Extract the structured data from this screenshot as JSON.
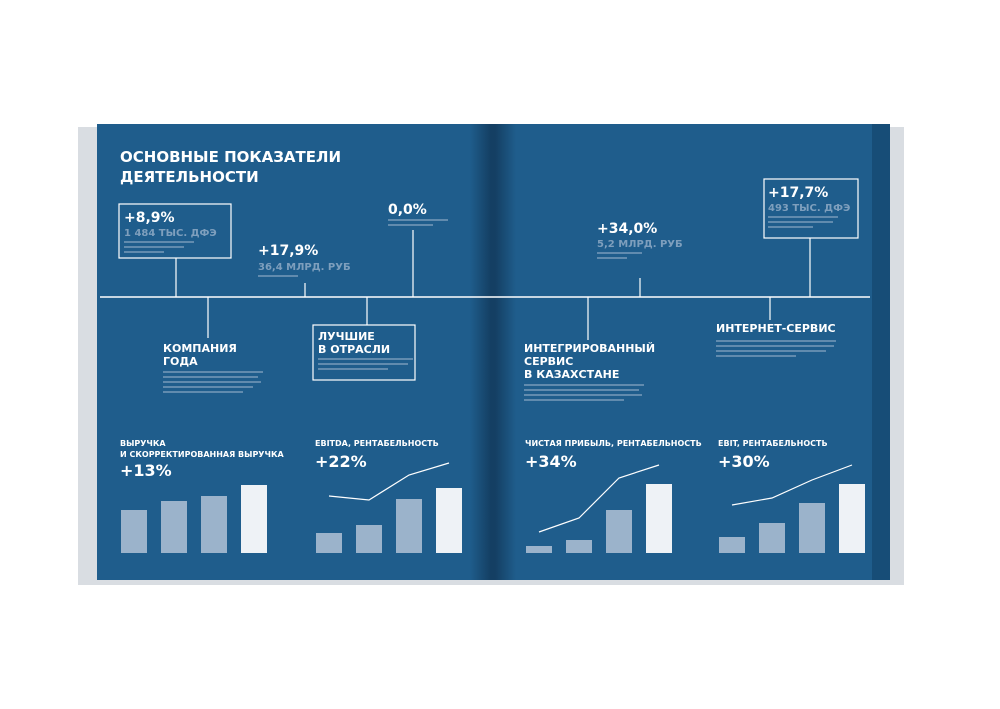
{
  "left_page": {
    "title_lines": [
      "ОСНОВНЫЕ ПОКАЗАТЕЛИ",
      "ДЕЯТЕЛЬНОСТИ"
    ],
    "metrics": [
      {
        "value": "+8,9%",
        "detail": "1 484 ТЫС. ДФЭ"
      },
      {
        "value": "+17,9%",
        "detail": "36,4 МЛРД. РУБ"
      },
      {
        "value": "0,0%"
      }
    ],
    "events": [
      {
        "title_lines": [
          "КОМПАНИЯ",
          "ГОДА"
        ]
      },
      {
        "title_lines": [
          "ЛУЧШИЕ",
          "В ОТРАСЛИ"
        ]
      }
    ],
    "charts": [
      {
        "title_lines": [
          "ВЫРУЧКА",
          "И СКОРРЕКТИРОВАННАЯ ВЫРУЧКА"
        ],
        "change": "+13%",
        "bars": [
          43,
          52,
          57,
          68
        ]
      },
      {
        "title_lines": [
          "EBITDA, РЕНТАБЕЛЬНОСТЬ"
        ],
        "change": "+22%",
        "bars": [
          20,
          28,
          54,
          65
        ],
        "line": [
          57,
          53,
          78,
          90
        ]
      }
    ]
  },
  "right_page": {
    "metrics": [
      {
        "value": "+34,0%",
        "detail": "5,2 МЛРД. РУБ"
      },
      {
        "value": "+17,7%",
        "detail": "493 ТЫС. ДФЭ"
      }
    ],
    "events": [
      {
        "title_lines": [
          "ИНТЕГРИРОВАННЫЙ",
          "СЕРВИС",
          "В КАЗАХСТАНЕ"
        ]
      },
      {
        "title_lines": [
          "ИНТЕРНЕТ-СЕРВИС"
        ]
      }
    ],
    "charts": [
      {
        "title_lines": [
          "ЧИСТАЯ ПРИБЫЛЬ, РЕНТАБЕЛЬНОСТЬ"
        ],
        "change": "+34%",
        "bars": [
          7,
          13,
          43,
          69
        ],
        "line": [
          21,
          35,
          75,
          88
        ]
      },
      {
        "title_lines": [
          "EBIT, РЕНТАБЕЛЬНОСТЬ"
        ],
        "change": "+30%",
        "bars": [
          16,
          30,
          50,
          69
        ],
        "line": [
          48,
          55,
          73,
          88
        ]
      }
    ]
  }
}
